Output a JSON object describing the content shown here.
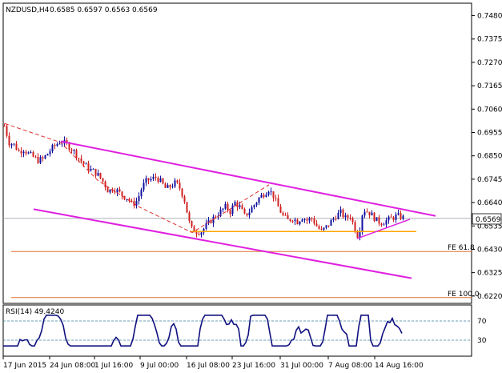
{
  "header": {
    "symbol_tf": "NZDUSD,H4",
    "ohlc": "0.6585 0.6597 0.6563 0.6569"
  },
  "rsi_header": "RSI(14) 49.4240",
  "current_price_label": "0.6569",
  "fib_labels": [
    "FE 61.8",
    "FE 100.0"
  ],
  "colors": {
    "up": "#1010a0",
    "down": "#d02020",
    "channel": "#e020e0",
    "support": "#ffa500",
    "fib": "#e07030",
    "zigzag": "#e03030",
    "rsi": "#101080",
    "rsi_level": "#3a7fa0"
  },
  "chart_data": {
    "type": "candlestick",
    "title": "NZDUSD,H4",
    "price_axis_ticks": [
      "0.7480",
      "0.7375",
      "0.7270",
      "0.7165",
      "0.7060",
      "0.6955",
      "0.6850",
      "0.6745",
      "0.6640",
      "0.6535",
      "0.6430",
      "0.6325",
      "0.6220"
    ],
    "time_axis_ticks": [
      "17 Jun 2015",
      "24 Jun 08:00",
      "1 Jul 16:00",
      "9 Jul 00:00",
      "16 Jul 08:00",
      "23 Jul 16:00",
      "31 Jul 00:00",
      "7 Aug 08:00",
      "14 Aug 16:00"
    ],
    "ylim": [
      0.6205,
      0.75
    ],
    "last_price": 0.6569,
    "close_path": [
      [
        0,
        0.6985
      ],
      [
        6,
        0.691
      ],
      [
        12,
        0.69
      ],
      [
        18,
        0.687
      ],
      [
        24,
        0.688
      ],
      [
        30,
        0.686
      ],
      [
        36,
        0.6845
      ],
      [
        42,
        0.683
      ],
      [
        48,
        0.6835
      ],
      [
        54,
        0.686
      ],
      [
        60,
        0.6885
      ],
      [
        66,
        0.6905
      ],
      [
        70,
        0.6915
      ],
      [
        76,
        0.6905
      ],
      [
        82,
        0.689
      ],
      [
        88,
        0.6865
      ],
      [
        94,
        0.6835
      ],
      [
        100,
        0.681
      ],
      [
        106,
        0.679
      ],
      [
        112,
        0.678
      ],
      [
        118,
        0.676
      ],
      [
        124,
        0.673
      ],
      [
        130,
        0.669
      ],
      [
        136,
        0.6705
      ],
      [
        142,
        0.669
      ],
      [
        148,
        0.667
      ],
      [
        154,
        0.666
      ],
      [
        160,
        0.663
      ],
      [
        166,
        0.665
      ],
      [
        172,
        0.671
      ],
      [
        178,
        0.674
      ],
      [
        184,
        0.6745
      ],
      [
        190,
        0.6755
      ],
      [
        196,
        0.673
      ],
      [
        202,
        0.67
      ],
      [
        208,
        0.6715
      ],
      [
        214,
        0.673
      ],
      [
        220,
        0.67
      ],
      [
        226,
        0.664
      ],
      [
        230,
        0.656
      ],
      [
        234,
        0.652
      ],
      [
        240,
        0.651
      ],
      [
        246,
        0.651
      ],
      [
        252,
        0.6535
      ],
      [
        258,
        0.656
      ],
      [
        264,
        0.658
      ],
      [
        270,
        0.66
      ],
      [
        276,
        0.662
      ],
      [
        282,
        0.66
      ],
      [
        288,
        0.664
      ],
      [
        294,
        0.662
      ],
      [
        300,
        0.658
      ],
      [
        306,
        0.66
      ],
      [
        312,
        0.663
      ],
      [
        318,
        0.666
      ],
      [
        324,
        0.668
      ],
      [
        330,
        0.67
      ],
      [
        336,
        0.667
      ],
      [
        342,
        0.662
      ],
      [
        348,
        0.658
      ],
      [
        354,
        0.656
      ],
      [
        360,
        0.657
      ],
      [
        366,
        0.6555
      ],
      [
        372,
        0.6575
      ],
      [
        378,
        0.656
      ],
      [
        384,
        0.657
      ],
      [
        390,
        0.6535
      ],
      [
        396,
        0.651
      ],
      [
        402,
        0.653
      ],
      [
        408,
        0.6555
      ],
      [
        414,
        0.658
      ],
      [
        420,
        0.6595
      ],
      [
        426,
        0.657
      ],
      [
        432,
        0.658
      ],
      [
        438,
        0.652
      ],
      [
        442,
        0.6485
      ],
      [
        448,
        0.661
      ],
      [
        454,
        0.66
      ],
      [
        460,
        0.658
      ],
      [
        466,
        0.6555
      ],
      [
        472,
        0.655
      ],
      [
        478,
        0.656
      ],
      [
        484,
        0.657
      ],
      [
        490,
        0.658
      ],
      [
        496,
        0.6575
      ],
      [
        500,
        0.6569
      ]
    ],
    "rsi": {
      "period": 14,
      "value": 49.424,
      "ticks": [
        "70",
        "30"
      ],
      "levels": [
        70,
        30
      ],
      "ylim": [
        0,
        100
      ]
    },
    "annotations": {
      "channel_upper": [
        [
          72,
          0.6915
        ],
        [
          540,
          0.658
        ]
      ],
      "channel_lower": [
        [
          38,
          0.661
        ],
        [
          510,
          0.63
        ]
      ],
      "support_line": [
        [
          233,
          0.651
        ],
        [
          516,
          0.651
        ]
      ],
      "rising_trend": [
        [
          442,
          0.6478
        ],
        [
          508,
          0.6565
        ]
      ],
      "zigzag": [
        [
          2,
          0.6995
        ],
        [
          72,
          0.691
        ],
        [
          118,
          0.674
        ],
        [
          170,
          0.662
        ],
        [
          236,
          0.6505
        ],
        [
          332,
          0.672
        ]
      ],
      "fe_61_8": 0.642,
      "fe_100": 0.6213
    }
  }
}
